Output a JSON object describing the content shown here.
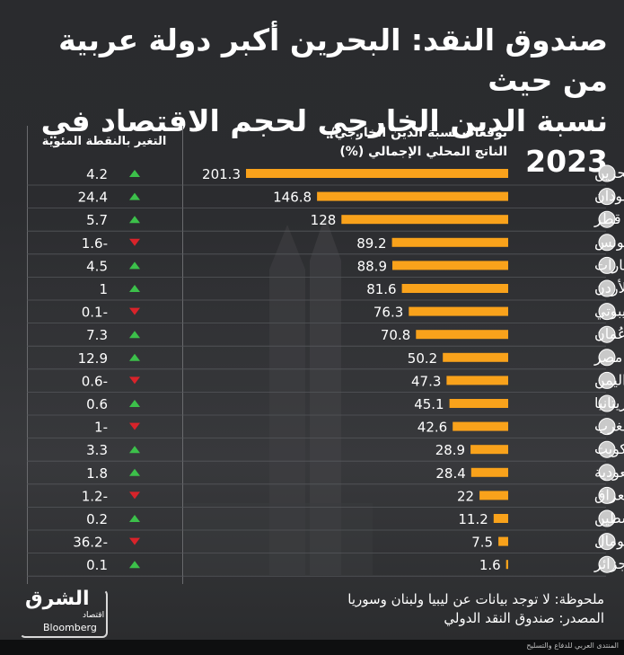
{
  "title_lines": [
    "صندوق النقد: البحرين أكبر دولة عربية من حيث",
    "نسبة الدين الخارجي لحجم الاقتصاد في 2023"
  ],
  "right_header_lines": [
    "توقعات نسبة الدين الخارجي/",
    "الناتج المحلي الإجمالي (%)"
  ],
  "left_header": "التغير بالنقطة المئوية",
  "note": "ملحوظة: لا توجد بيانات عن ليبيا ولبنان وسوريا",
  "source": "المصدر: صندوق النقد الدولي",
  "logo": {
    "main": "الشرق",
    "sub": "اقتصاد",
    "partner": "Bloomberg"
  },
  "footer_text": "المنتدى العربي للدفاع والتسليح",
  "colors": {
    "bar": "#f9a21b",
    "up": "#3cc04a",
    "down": "#d8232a",
    "text": "#ffffff"
  },
  "chart_data": {
    "type": "bar",
    "orientation": "horizontal",
    "title": "صندوق النقد: البحرين أكبر دولة عربية من حيث نسبة الدين الخارجي لحجم الاقتصاد في 2023",
    "categories": [
      "البحرين",
      "السودان",
      "قطر",
      "تونس",
      "الإمارات",
      "الأردن",
      "جيبوتي",
      "عُمان",
      "مصر",
      "اليمن",
      "موريتانيا",
      "المغرب",
      "الكويت",
      "السعودية",
      "العراق",
      "فلسطين",
      "الصومال",
      "الجزائر"
    ],
    "series": [
      {
        "name": "توقعات نسبة الدين الخارجي/ الناتج المحلي الإجمالي (%)",
        "values": [
          201.3,
          146.8,
          128,
          89.2,
          88.9,
          81.6,
          76.3,
          70.8,
          50.2,
          47.3,
          45.1,
          42.6,
          28.9,
          28.4,
          22,
          11.2,
          7.5,
          1.6
        ]
      },
      {
        "name": "التغير بالنقطة المئوية",
        "values": [
          4.2,
          24.4,
          5.7,
          -1.6,
          4.5,
          1,
          -0.1,
          7.3,
          12.9,
          -0.6,
          0.6,
          -1,
          3.3,
          1.8,
          -1.2,
          0.2,
          -36.2,
          0.1
        ]
      }
    ],
    "value_labels": [
      "201.3",
      "146.8",
      "128",
      "89.2",
      "88.9",
      "81.6",
      "76.3",
      "70.8",
      "50.2",
      "47.3",
      "45.1",
      "42.6",
      "28.9",
      "28.4",
      "22",
      "11.2",
      "7.5",
      "1.6"
    ],
    "change_labels": [
      "4.2",
      "24.4",
      "5.7",
      "1.6-",
      "4.5",
      "1",
      "0.1-",
      "7.3",
      "12.9",
      "0.6-",
      "0.6",
      "1-",
      "3.3",
      "1.8",
      "1.2-",
      "0.2",
      "36.2-",
      "0.1"
    ]
  }
}
